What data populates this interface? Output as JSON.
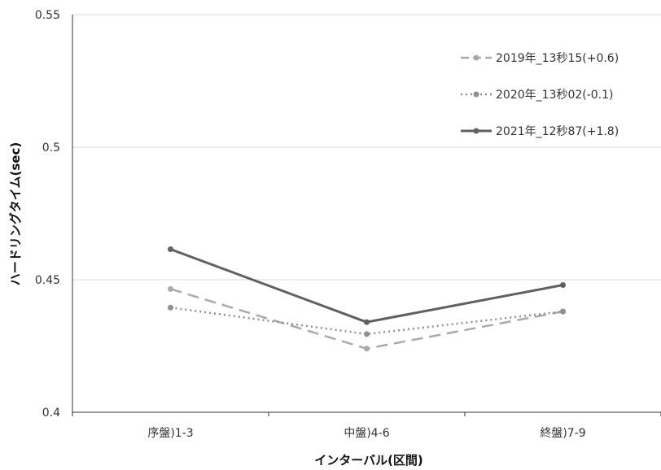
{
  "chart_data": {
    "type": "line",
    "title": "",
    "xlabel": "インターバル(区間)",
    "ylabel": "ハードリングタイム(sec)",
    "categories": [
      "序盤)1-3",
      "中盤)4-6",
      "終盤)7-9"
    ],
    "ylim": [
      0.4,
      0.55
    ],
    "yticks": [
      "0.4",
      "0.45",
      "0.5",
      "0.55"
    ],
    "grid": true,
    "legend_position": "top-right",
    "series": [
      {
        "name": "2019年_13秒15(+0.6)",
        "values": [
          0.4465,
          0.424,
          0.438
        ],
        "color": "#aaaaaa",
        "style": "dashed"
      },
      {
        "name": "2020年_13秒02(-0.1)",
        "values": [
          0.4395,
          0.4295,
          0.438
        ],
        "color": "#909090",
        "style": "dotted"
      },
      {
        "name": "2021年_12秒87(+1.8)",
        "values": [
          0.4615,
          0.434,
          0.448
        ],
        "color": "#606060",
        "style": "solid"
      }
    ]
  }
}
